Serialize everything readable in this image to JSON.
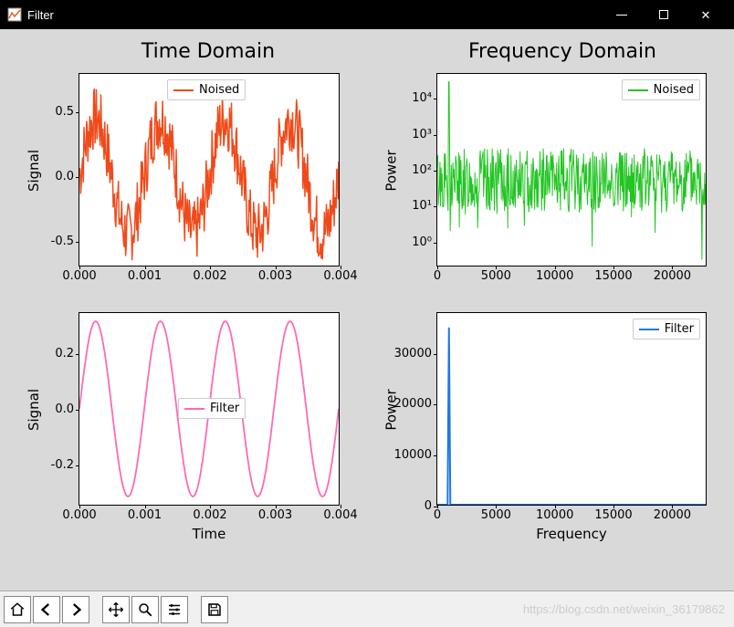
{
  "window": {
    "title": "Filter",
    "controls": {
      "minimize": "—",
      "maximize": "□",
      "close": "✕"
    }
  },
  "figure": {
    "background_color": "#d9d9d9",
    "column_titles": {
      "left": "Time Domain",
      "right": "Frequency Domain",
      "fontsize": 22
    },
    "axis_label_fontsize": 15,
    "tick_fontsize": 13,
    "legend_fontsize": 13,
    "subplots": {
      "time_noised": {
        "type": "line",
        "color": "#f04a1a",
        "linewidth": 1.5,
        "ylabel": "Signal",
        "xlim": [
          0,
          0.004
        ],
        "ylim": [
          -0.7,
          0.8
        ],
        "yticks": [
          -0.5,
          0.0,
          0.5
        ],
        "xticks": [
          0.0,
          0.001,
          0.002,
          0.003,
          0.004
        ],
        "xtick_labels": [
          "0.000",
          "0.001",
          "0.002",
          "0.003",
          "0.004"
        ],
        "ytick_labels": [
          "-0.5",
          "0.0",
          "0.5"
        ],
        "legend": {
          "label": "Noised",
          "loc": "top-center"
        },
        "background_color": "#ffffff",
        "signal_frequency_hz": 1000,
        "signal_amplitude": 0.45,
        "noise_amplitude": 0.25
      },
      "time_filter": {
        "type": "line",
        "color": "#ff69b4",
        "linewidth": 1.8,
        "ylabel": "Signal",
        "xlabel": "Time",
        "xlim": [
          0,
          0.004
        ],
        "ylim": [
          -0.35,
          0.35
        ],
        "yticks": [
          -0.2,
          0.0,
          0.2
        ],
        "xticks": [
          0.0,
          0.001,
          0.002,
          0.003,
          0.004
        ],
        "xtick_labels": [
          "0.000",
          "0.001",
          "0.002",
          "0.003",
          "0.004"
        ],
        "ytick_labels": [
          "-0.2",
          "0.0",
          "0.2"
        ],
        "legend": {
          "label": "Filter",
          "loc": "center"
        },
        "background_color": "#ffffff",
        "signal_frequency_hz": 1000,
        "signal_amplitude": 0.32
      },
      "freq_noised": {
        "type": "line-log",
        "color": "#22c522",
        "linewidth": 1.0,
        "ylabel": "Power",
        "xlim": [
          0,
          23000
        ],
        "yscale": "log",
        "ylim": [
          0.2,
          50000
        ],
        "yticks": [
          1,
          10,
          100,
          1000,
          10000
        ],
        "ytick_labels": [
          "10⁰",
          "10¹",
          "10²",
          "10³",
          "10⁴"
        ],
        "xticks": [
          0,
          5000,
          10000,
          15000,
          20000
        ],
        "xtick_labels": [
          "0",
          "5000",
          "10000",
          "15000",
          "20000"
        ],
        "legend": {
          "label": "Noised",
          "loc": "top-right"
        },
        "background_color": "#ffffff",
        "peak_freq": 1000,
        "peak_power": 30000,
        "noise_floor_mean_power": 50
      },
      "freq_filter": {
        "type": "line",
        "color": "#1f77e4",
        "linewidth": 2.0,
        "ylabel": "Power",
        "xlabel": "Frequency",
        "xlim": [
          0,
          23000
        ],
        "ylim": [
          0,
          38000
        ],
        "yticks": [
          0,
          10000,
          20000,
          30000
        ],
        "ytick_labels": [
          "0",
          "10000",
          "20000",
          "30000"
        ],
        "xticks": [
          0,
          5000,
          10000,
          15000,
          20000
        ],
        "xtick_labels": [
          "0",
          "5000",
          "10000",
          "15000",
          "20000"
        ],
        "legend": {
          "label": "Filter",
          "loc": "top-right"
        },
        "background_color": "#ffffff",
        "peak_freq": 1000,
        "peak_power": 35000
      }
    }
  },
  "toolbar": {
    "buttons": [
      "home",
      "back",
      "forward",
      "pan",
      "zoom",
      "configure",
      "save"
    ],
    "watermark": "https://blog.csdn.net/weixin_36179862"
  }
}
